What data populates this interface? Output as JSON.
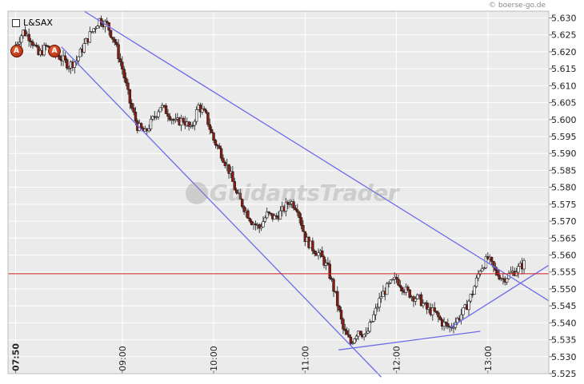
{
  "header": {
    "instrument": "L&SAX",
    "credit": "© boerse-go.de"
  },
  "watermark": "GuidantsTrader",
  "markers": [
    {
      "label": "A",
      "time": "07:50",
      "price": 5.6205
    },
    {
      "label": "A",
      "time": "08:15",
      "price": 5.6205
    }
  ],
  "chart_data": {
    "type": "candlestick",
    "title": "L&SAX",
    "x_ticks": [
      "07:50",
      "09:00",
      "10:00",
      "11:00",
      "12:00",
      "13:00"
    ],
    "y_ticks": [
      "5.525",
      "5.530",
      "5.535",
      "5.540",
      "5.545",
      "5.550",
      "5.555",
      "5.560",
      "5.565",
      "5.570",
      "5.575",
      "5.580",
      "5.585",
      "5.590",
      "5.595",
      "5.600",
      "5.605",
      "5.610",
      "5.615",
      "5.620",
      "5.625",
      "5.630"
    ],
    "ylim": [
      5.525,
      5.632
    ],
    "xlim": [
      "07:45",
      "13:40"
    ],
    "grid": true,
    "reference_line": {
      "value": 5.5545,
      "color": "#d42020"
    },
    "trendlines": [
      {
        "from": {
          "time": "08:35",
          "price": 5.632
        },
        "to": {
          "time": "13:40",
          "price": 5.5465
        },
        "color": "#6b6bea"
      },
      {
        "from": {
          "time": "08:20",
          "price": 5.6215
        },
        "to": {
          "time": "11:50",
          "price": 5.524
        },
        "color": "#6b6bea"
      },
      {
        "from": {
          "time": "11:22",
          "price": 5.532
        },
        "to": {
          "time": "12:55",
          "price": 5.5375
        },
        "color": "#6b6bea"
      },
      {
        "from": {
          "time": "12:35",
          "price": 5.5385
        },
        "to": {
          "time": "13:40",
          "price": 5.557
        },
        "color": "#6b6bea"
      }
    ],
    "price_path": [
      {
        "time": "07:50",
        "price": 5.622
      },
      {
        "time": "07:55",
        "price": 5.626
      },
      {
        "time": "08:00",
        "price": 5.624
      },
      {
        "time": "08:05",
        "price": 5.619
      },
      {
        "time": "08:10",
        "price": 5.6215
      },
      {
        "time": "08:15",
        "price": 5.62
      },
      {
        "time": "08:20",
        "price": 5.618
      },
      {
        "time": "08:25",
        "price": 5.616
      },
      {
        "time": "08:30",
        "price": 5.6175
      },
      {
        "time": "08:35",
        "price": 5.622
      },
      {
        "time": "08:40",
        "price": 5.626
      },
      {
        "time": "08:45",
        "price": 5.6295
      },
      {
        "time": "08:50",
        "price": 5.628
      },
      {
        "time": "08:55",
        "price": 5.623
      },
      {
        "time": "09:00",
        "price": 5.615
      },
      {
        "time": "09:05",
        "price": 5.605
      },
      {
        "time": "09:10",
        "price": 5.598
      },
      {
        "time": "09:15",
        "price": 5.596
      },
      {
        "time": "09:20",
        "price": 5.6
      },
      {
        "time": "09:25",
        "price": 5.604
      },
      {
        "time": "09:30",
        "price": 5.602
      },
      {
        "time": "09:35",
        "price": 5.599
      },
      {
        "time": "09:40",
        "price": 5.6
      },
      {
        "time": "09:45",
        "price": 5.597
      },
      {
        "time": "09:50",
        "price": 5.604
      },
      {
        "time": "09:55",
        "price": 5.601
      },
      {
        "time": "10:00",
        "price": 5.594
      },
      {
        "time": "10:05",
        "price": 5.59
      },
      {
        "time": "10:10",
        "price": 5.585
      },
      {
        "time": "10:15",
        "price": 5.578
      },
      {
        "time": "10:20",
        "price": 5.574
      },
      {
        "time": "10:25",
        "price": 5.57
      },
      {
        "time": "10:30",
        "price": 5.568
      },
      {
        "time": "10:35",
        "price": 5.572
      },
      {
        "time": "10:40",
        "price": 5.571
      },
      {
        "time": "10:45",
        "price": 5.573
      },
      {
        "time": "10:50",
        "price": 5.576
      },
      {
        "time": "10:55",
        "price": 5.574
      },
      {
        "time": "11:00",
        "price": 5.565
      },
      {
        "time": "11:05",
        "price": 5.562
      },
      {
        "time": "11:10",
        "price": 5.56
      },
      {
        "time": "11:15",
        "price": 5.556
      },
      {
        "time": "11:20",
        "price": 5.548
      },
      {
        "time": "11:25",
        "price": 5.538
      },
      {
        "time": "11:30",
        "price": 5.534
      },
      {
        "time": "11:35",
        "price": 5.538
      },
      {
        "time": "11:40",
        "price": 5.536
      },
      {
        "time": "11:45",
        "price": 5.542
      },
      {
        "time": "11:50",
        "price": 5.548
      },
      {
        "time": "11:55",
        "price": 5.551
      },
      {
        "time": "12:00",
        "price": 5.553
      },
      {
        "time": "12:05",
        "price": 5.55
      },
      {
        "time": "12:10",
        "price": 5.548
      },
      {
        "time": "12:15",
        "price": 5.547
      },
      {
        "time": "12:20",
        "price": 5.544
      },
      {
        "time": "12:25",
        "price": 5.543
      },
      {
        "time": "12:30",
        "price": 5.54
      },
      {
        "time": "12:35",
        "price": 5.5385
      },
      {
        "time": "12:40",
        "price": 5.541
      },
      {
        "time": "12:45",
        "price": 5.544
      },
      {
        "time": "12:50",
        "price": 5.549
      },
      {
        "time": "12:55",
        "price": 5.556
      },
      {
        "time": "13:00",
        "price": 5.559
      },
      {
        "time": "13:05",
        "price": 5.555
      },
      {
        "time": "13:10",
        "price": 5.553
      },
      {
        "time": "13:15",
        "price": 5.5545
      },
      {
        "time": "13:20",
        "price": 5.556
      },
      {
        "time": "13:25",
        "price": 5.558
      }
    ]
  },
  "colors": {
    "plot_bg": "#ebebeb",
    "grid": "#ffffff",
    "candle_up": "#ffffff",
    "candle_down": "#8c1a10",
    "candle_stroke": "#1a1a1a",
    "trend": "#6b6bea",
    "axis_text": "#222222"
  }
}
